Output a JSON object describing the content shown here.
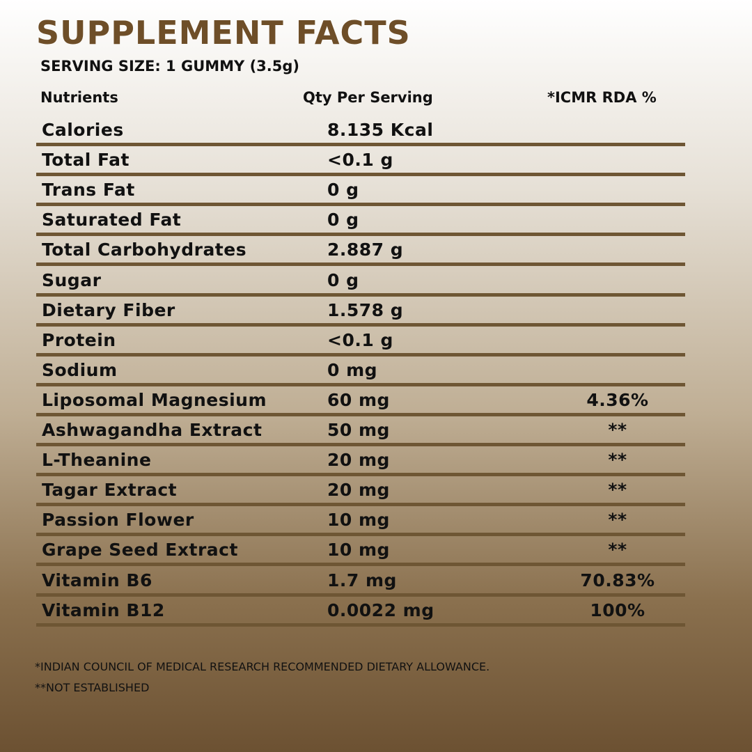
{
  "header": {
    "title": "SUPPLEMENT FACTS",
    "serving": "SERVING SIZE: 1 GUMMY (3.5g)"
  },
  "table": {
    "columns": [
      "Nutrients",
      "Qty Per Serving",
      "*ICMR RDA %"
    ],
    "rows": [
      [
        "Calories",
        "8.135 Kcal",
        null
      ],
      [
        "Total Fat",
        "<0.1 g",
        null
      ],
      [
        "Trans Fat",
        "0 g",
        null
      ],
      [
        "Saturated Fat",
        "0 g",
        null
      ],
      [
        "Total Carbohydrates",
        "2.887 g",
        null
      ],
      [
        "Sugar",
        "0 g",
        null
      ],
      [
        "Dietary Fiber",
        "1.578 g",
        null
      ],
      [
        "Protein",
        "<0.1 g",
        null
      ],
      [
        "Sodium",
        "0 mg",
        null
      ],
      [
        "Liposomal Magnesium",
        "60 mg",
        "4.36%"
      ],
      [
        "Ashwagandha Extract",
        "50 mg",
        "**"
      ],
      [
        "L-Theanine",
        "20 mg",
        "**"
      ],
      [
        "Tagar Extract",
        "20 mg",
        "**"
      ],
      [
        "Passion Flower",
        "10 mg",
        "**"
      ],
      [
        "Grape Seed Extract",
        "10 mg",
        "**"
      ],
      [
        "Vitamin B6",
        "1.7 mg",
        "70.83%"
      ],
      [
        "Vitamin B12",
        "0.0022 mg",
        "100%"
      ]
    ]
  },
  "footnotes": [
    "*INDIAN COUNCIL OF MEDICAL RESEARCH RECOMMENDED DIETARY ALLOWANCE.",
    "**NOT ESTABLISHED"
  ]
}
